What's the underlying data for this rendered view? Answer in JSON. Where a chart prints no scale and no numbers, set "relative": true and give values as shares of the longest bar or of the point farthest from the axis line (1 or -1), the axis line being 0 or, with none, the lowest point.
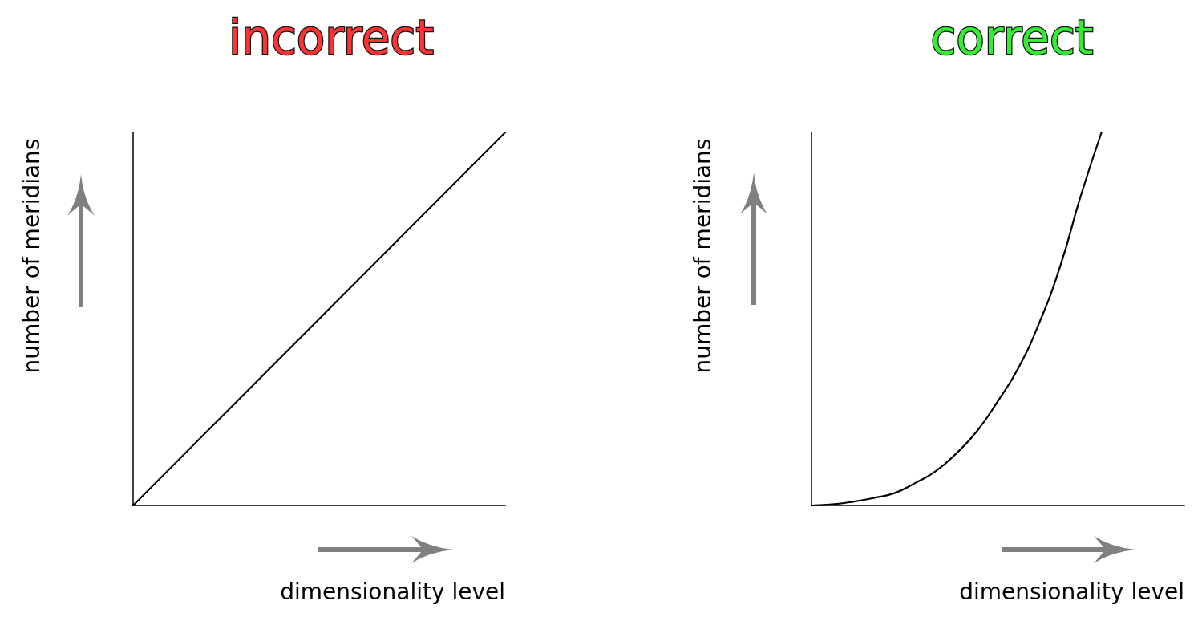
{
  "chart_data": [
    {
      "type": "line",
      "title": "incorrect",
      "xlabel": "dimensionality level",
      "ylabel": "number of meridians",
      "categories": [
        null,
        null
      ],
      "values": [
        0,
        1
      ],
      "color": "#000000",
      "relative": true,
      "marker": "none",
      "line_style": "solid"
    },
    {
      "type": "line",
      "title": "correct",
      "xlabel": "dimensionality level",
      "ylabel": "number of meridians",
      "categories": [
        null,
        null,
        null,
        null,
        null,
        null,
        null,
        null,
        null,
        null,
        null,
        null,
        null,
        null,
        null,
        null,
        null,
        null,
        null
      ],
      "values": [
        0,
        0.003,
        0.01,
        0.02,
        0.033,
        0.06,
        0.092,
        0.14,
        0.2,
        0.28,
        0.37,
        0.49,
        0.64,
        0.83,
        1,
        null,
        null,
        null,
        null
      ],
      "color": "#000000",
      "relative": true,
      "marker": "none",
      "line_style": "solid"
    }
  ]
}
